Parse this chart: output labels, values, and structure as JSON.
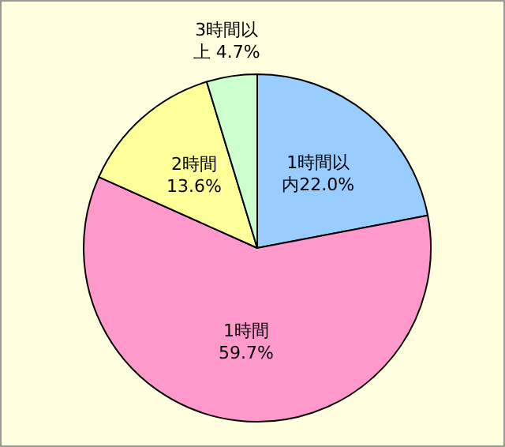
{
  "chart_data": {
    "type": "pie",
    "categories": [
      "1時間以内",
      "1時間",
      "2時間",
      "3時間以上"
    ],
    "values": [
      22.0,
      59.7,
      13.6,
      4.7
    ],
    "value_labels": [
      "22.0%",
      "59.7%",
      "13.6%",
      "4.7%"
    ],
    "colors": [
      "#99ccff",
      "#ff99cc",
      "#ffff99",
      "#ccffcc"
    ]
  }
}
